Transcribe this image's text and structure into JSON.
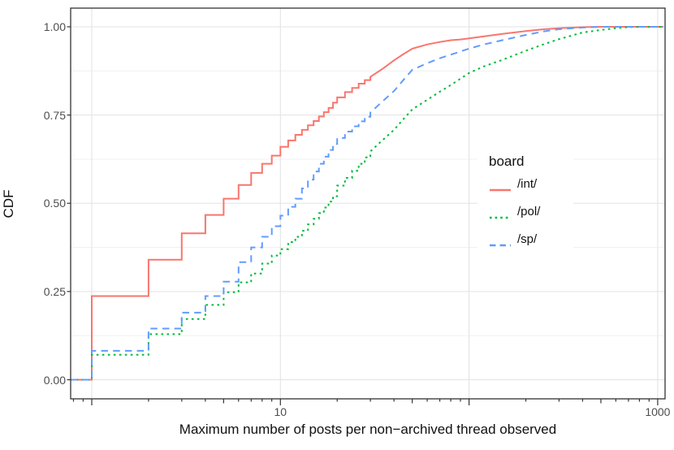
{
  "figure": {
    "background": "#ffffff"
  },
  "theme": {
    "panel_border_color": "#333333",
    "grid_major_color": "#e3e3e3",
    "grid_minor_color": "#f0f0f0",
    "tick_color": "#333333",
    "axis_text_color": "#4d4d4d",
    "title_text_color": "#111111"
  },
  "axes": {
    "x": {
      "title": "Maximum number of posts per non−archived thread observed",
      "scale": "log10",
      "labeled_breaks": [
        {
          "value": 10,
          "label": "10"
        },
        {
          "value": 1000,
          "label": "1000"
        }
      ],
      "gridline_values": [
        1,
        10,
        100,
        1000
      ],
      "logticks": true
    },
    "y": {
      "title": "CDF",
      "breaks": [
        {
          "value": 0.0,
          "label": "0.00"
        },
        {
          "value": 0.25,
          "label": "0.25"
        },
        {
          "value": 0.5,
          "label": "0.50"
        },
        {
          "value": 0.75,
          "label": "0.75"
        },
        {
          "value": 1.0,
          "label": "1.00"
        }
      ],
      "minor_breaks": [
        0.125,
        0.375,
        0.625,
        0.875
      ]
    }
  },
  "legend": {
    "title": "board",
    "items": [
      {
        "label": "/int/",
        "color": "#F8766D",
        "linetype": "solid"
      },
      {
        "label": "/pol/",
        "color": "#00BA38",
        "linetype": "dotted"
      },
      {
        "label": "/sp/",
        "color": "#619CFF",
        "linetype": "dashed"
      }
    ]
  },
  "chart_data": {
    "type": "line",
    "subtype": "empirical-cdf-step",
    "title": "",
    "xlabel": "Maximum number of posts per non−archived thread observed",
    "ylabel": "CDF",
    "x_scale": "log10",
    "xlim": [
      0.77,
      1100
    ],
    "ylim": [
      0,
      1
    ],
    "grid": true,
    "legend_position": "inside-right",
    "series": [
      {
        "name": "/int/",
        "color": "#F8766D",
        "linetype": "solid",
        "step_until": 30,
        "points": [
          [
            0.77,
            0
          ],
          [
            1,
            0.237
          ],
          [
            2,
            0.34
          ],
          [
            3,
            0.415
          ],
          [
            4,
            0.467
          ],
          [
            5,
            0.513
          ],
          [
            6,
            0.552
          ],
          [
            7,
            0.586
          ],
          [
            8,
            0.612
          ],
          [
            9,
            0.635
          ],
          [
            10,
            0.66
          ],
          [
            11,
            0.678
          ],
          [
            12,
            0.694
          ],
          [
            13,
            0.708
          ],
          [
            14,
            0.721
          ],
          [
            15,
            0.733
          ],
          [
            16,
            0.746
          ],
          [
            17,
            0.758
          ],
          [
            18,
            0.77
          ],
          [
            19,
            0.785
          ],
          [
            20,
            0.8
          ],
          [
            22,
            0.815
          ],
          [
            24,
            0.827
          ],
          [
            26,
            0.839
          ],
          [
            28,
            0.849
          ],
          [
            30,
            0.858
          ],
          [
            35,
            0.882
          ],
          [
            40,
            0.905
          ],
          [
            45,
            0.923
          ],
          [
            50,
            0.938
          ],
          [
            60,
            0.95
          ],
          [
            70,
            0.957
          ],
          [
            80,
            0.962
          ],
          [
            90,
            0.964
          ],
          [
            100,
            0.967
          ],
          [
            120,
            0.973
          ],
          [
            150,
            0.98
          ],
          [
            200,
            0.988
          ],
          [
            250,
            0.993
          ],
          [
            300,
            0.996
          ],
          [
            400,
            0.999
          ],
          [
            500,
            1.0
          ],
          [
            1070,
            1.0
          ]
        ]
      },
      {
        "name": "/pol/",
        "color": "#00BA38",
        "linetype": "dotted",
        "step_until": 30,
        "points": [
          [
            0.77,
            0
          ],
          [
            1,
            0.071
          ],
          [
            2,
            0.129
          ],
          [
            3,
            0.172
          ],
          [
            4,
            0.212
          ],
          [
            5,
            0.248
          ],
          [
            6,
            0.276
          ],
          [
            7,
            0.301
          ],
          [
            8,
            0.329
          ],
          [
            9,
            0.352
          ],
          [
            10,
            0.37
          ],
          [
            11,
            0.39
          ],
          [
            12,
            0.405
          ],
          [
            13,
            0.422
          ],
          [
            14,
            0.44
          ],
          [
            15,
            0.456
          ],
          [
            16,
            0.472
          ],
          [
            17,
            0.488
          ],
          [
            18,
            0.505
          ],
          [
            19,
            0.52
          ],
          [
            20,
            0.55
          ],
          [
            22,
            0.572
          ],
          [
            24,
            0.592
          ],
          [
            26,
            0.612
          ],
          [
            28,
            0.63
          ],
          [
            30,
            0.647
          ],
          [
            35,
            0.68
          ],
          [
            40,
            0.708
          ],
          [
            45,
            0.739
          ],
          [
            50,
            0.766
          ],
          [
            60,
            0.793
          ],
          [
            70,
            0.816
          ],
          [
            80,
            0.835
          ],
          [
            90,
            0.853
          ],
          [
            100,
            0.869
          ],
          [
            120,
            0.888
          ],
          [
            150,
            0.906
          ],
          [
            200,
            0.932
          ],
          [
            250,
            0.951
          ],
          [
            300,
            0.965
          ],
          [
            400,
            0.984
          ],
          [
            500,
            0.991
          ],
          [
            600,
            0.996
          ],
          [
            700,
            0.999
          ],
          [
            800,
            1.0
          ],
          [
            1070,
            1.0
          ]
        ]
      },
      {
        "name": "/sp/",
        "color": "#619CFF",
        "linetype": "dashed",
        "step_until": 30,
        "points": [
          [
            0.77,
            0
          ],
          [
            1,
            0.082
          ],
          [
            2,
            0.145
          ],
          [
            3,
            0.19
          ],
          [
            4,
            0.237
          ],
          [
            5,
            0.278
          ],
          [
            6,
            0.333
          ],
          [
            7,
            0.375
          ],
          [
            8,
            0.405
          ],
          [
            9,
            0.435
          ],
          [
            10,
            0.465
          ],
          [
            11,
            0.49
          ],
          [
            12,
            0.513
          ],
          [
            13,
            0.542
          ],
          [
            14,
            0.567
          ],
          [
            15,
            0.59
          ],
          [
            16,
            0.612
          ],
          [
            17,
            0.632
          ],
          [
            18,
            0.651
          ],
          [
            19,
            0.668
          ],
          [
            20,
            0.685
          ],
          [
            22,
            0.703
          ],
          [
            24,
            0.718
          ],
          [
            26,
            0.732
          ],
          [
            28,
            0.745
          ],
          [
            30,
            0.757
          ],
          [
            35,
            0.79
          ],
          [
            40,
            0.818
          ],
          [
            45,
            0.85
          ],
          [
            50,
            0.878
          ],
          [
            60,
            0.897
          ],
          [
            70,
            0.911
          ],
          [
            80,
            0.921
          ],
          [
            90,
            0.93
          ],
          [
            100,
            0.938
          ],
          [
            120,
            0.95
          ],
          [
            150,
            0.962
          ],
          [
            200,
            0.977
          ],
          [
            250,
            0.987
          ],
          [
            300,
            0.993
          ],
          [
            400,
            0.998
          ],
          [
            500,
            1.0
          ],
          [
            1070,
            1.0
          ]
        ]
      }
    ]
  }
}
